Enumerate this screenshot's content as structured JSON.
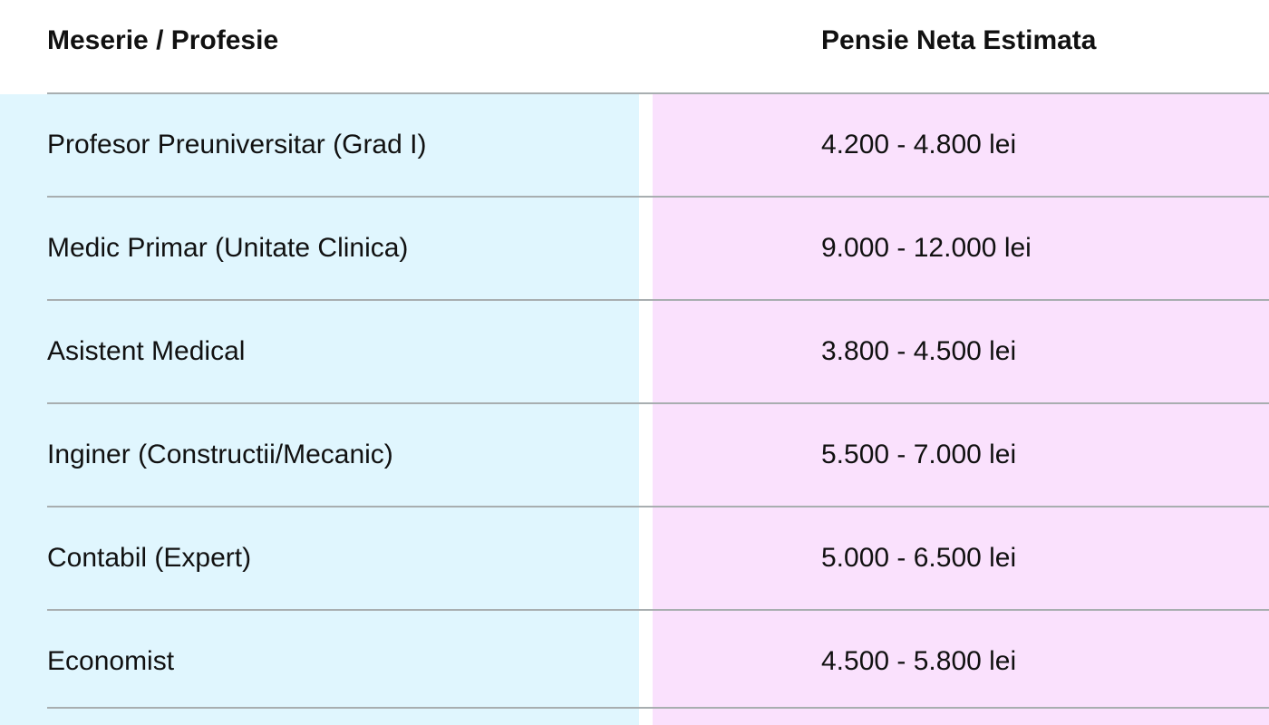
{
  "table": {
    "headers": [
      "Meserie / Profesie",
      "Pensie Neta Estimata"
    ],
    "rows": [
      [
        "Profesor Preuniversitar (Grad I)",
        "4.200 - 4.800 lei"
      ],
      [
        "Medic Primar (Unitate Clinica)",
        "9.000 - 12.000 lei"
      ],
      [
        "Asistent Medical",
        "3.800 - 4.500 lei"
      ],
      [
        "Inginer (Constructii/Mecanic)",
        "5.500 - 7.000 lei"
      ],
      [
        "Contabil (Expert)",
        "5.000 - 6.500 lei"
      ],
      [
        "Economist",
        "4.500 - 5.800 lei"
      ]
    ],
    "colors": {
      "left_column_bg": "#e0f6fe",
      "right_column_bg": "#fae1fd"
    }
  }
}
